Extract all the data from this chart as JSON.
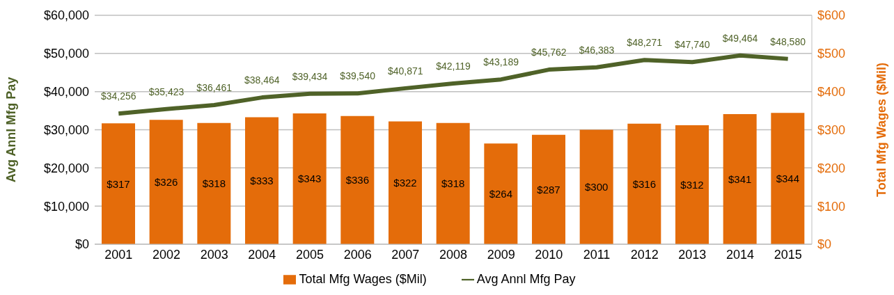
{
  "chart_data": {
    "type": "bar",
    "categories": [
      "2001",
      "2002",
      "2003",
      "2004",
      "2005",
      "2006",
      "2007",
      "2008",
      "2009",
      "2010",
      "2011",
      "2012",
      "2013",
      "2014",
      "2015"
    ],
    "series": [
      {
        "name": "Total Mfg Wages ($Mil)",
        "axis": "y2",
        "color": "#e46c0a",
        "values": [
          317,
          326,
          318,
          333,
          343,
          336,
          322,
          318,
          264,
          287,
          300,
          316,
          312,
          341,
          344
        ],
        "value_labels": [
          "$317",
          "$326",
          "$318",
          "$333",
          "$343",
          "$336",
          "$322",
          "$318",
          "$264",
          "$287",
          "$300",
          "$316",
          "$312",
          "$341",
          "$344"
        ]
      },
      {
        "name": "Avg Annl Mfg Pay",
        "type": "line",
        "color": "#4f6228",
        "values": [
          34256,
          35423,
          36461,
          38464,
          39434,
          39540,
          40871,
          42119,
          43189,
          45762,
          46383,
          48271,
          47740,
          49464,
          48580
        ],
        "value_labels": [
          "$34,256",
          "$35,423",
          "$36,461",
          "$38,464",
          "$39,434",
          "$39,540",
          "$40,871",
          "$42,119",
          "$43,189",
          "$45,762",
          "$46,383",
          "$48,271",
          "$47,740",
          "$49,464",
          "$48,580"
        ]
      }
    ],
    "ylabel": "Avg Annl Mfg Pay",
    "y2label": "Total Mfg Wages ($Mil)",
    "ylim": [
      0,
      60000
    ],
    "yticks": [
      {
        "value": 0,
        "label": "$0"
      },
      {
        "value": 10000,
        "label": "$10,000"
      },
      {
        "value": 20000,
        "label": "$20,000"
      },
      {
        "value": 30000,
        "label": "$30,000"
      },
      {
        "value": 40000,
        "label": "$40,000"
      },
      {
        "value": 50000,
        "label": "$50,000"
      },
      {
        "value": 60000,
        "label": "$60,000"
      }
    ],
    "y2lim": [
      0,
      600
    ],
    "y2ticks": [
      {
        "value": 0,
        "label": "$0"
      },
      {
        "value": 100,
        "label": "$100"
      },
      {
        "value": 200,
        "label": "$200"
      },
      {
        "value": 300,
        "label": "$300"
      },
      {
        "value": 400,
        "label": "$400"
      },
      {
        "value": 500,
        "label": "$500"
      },
      {
        "value": 600,
        "label": "$600"
      }
    ],
    "grid": "y",
    "legend": "bottom",
    "marker": "none",
    "line_style": "solid"
  }
}
